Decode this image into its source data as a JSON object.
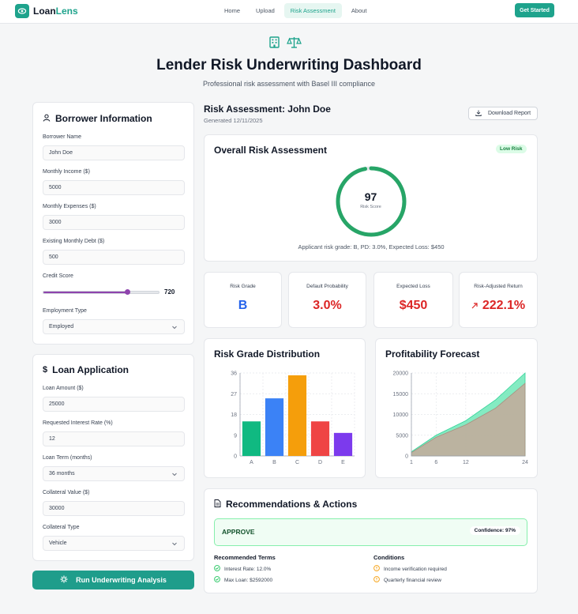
{
  "nav": {
    "brand_a": "Loan",
    "brand_b": "Lens",
    "links": [
      "Home",
      "Upload",
      "Risk Assessment",
      "About"
    ],
    "cta": "Get Started"
  },
  "hero": {
    "title": "Lender Risk Underwriting Dashboard",
    "subtitle": "Professional risk assessment with Basel III compliance"
  },
  "borrower": {
    "title": "Borrower Information",
    "name_label": "Borrower Name",
    "name_value": "John Doe",
    "income_label": "Monthly Income ($)",
    "income_value": "5000",
    "expenses_label": "Monthly Expenses ($)",
    "expenses_value": "3000",
    "debt_label": "Existing Monthly Debt ($)",
    "debt_value": "500",
    "credit_label": "Credit Score",
    "credit_value": "720",
    "credit_fraction": 0.72,
    "employment_label": "Employment Type",
    "employment_value": "Employed"
  },
  "loan": {
    "title": "Loan Application",
    "amount_label": "Loan Amount ($)",
    "amount_value": "25000",
    "rate_label": "Requested Interest Rate (%)",
    "rate_value": "12",
    "term_label": "Loan Term (months)",
    "term_value": "36 months",
    "collateral_label": "Collateral Value ($)",
    "collateral_value": "30000",
    "collateral_type_label": "Collateral Type",
    "collateral_type_value": "Vehicle"
  },
  "run_button": "Run Underwriting Analysis",
  "assessment": {
    "title": "Risk Assessment: John Doe",
    "date": "Generated 12/11/2025",
    "download": "Download Report",
    "overall_title": "Overall Risk Assessment",
    "badge": "Low Risk",
    "score": "97",
    "score_label": "Risk Score",
    "score_fraction": 0.97,
    "summary": "Applicant risk grade: B, PD: 3.0%, Expected Loss: $450"
  },
  "metrics": [
    {
      "label": "Risk Grade",
      "value": "B",
      "color": "#2563eb"
    },
    {
      "label": "Default Probability",
      "value": "3.0%",
      "color": "#dc2626"
    },
    {
      "label": "Expected Loss",
      "value": "$450",
      "color": "#dc2626"
    },
    {
      "label": "Risk-Adjusted Return",
      "value": "222.1%",
      "color": "#dc2626"
    }
  ],
  "chart_data": [
    {
      "type": "bar",
      "title": "Risk Grade Distribution",
      "categories": [
        "A",
        "B",
        "C",
        "D",
        "E"
      ],
      "values": [
        15,
        25,
        35,
        15,
        10
      ],
      "colors": [
        "#10b981",
        "#3b82f6",
        "#f59e0b",
        "#ef4444",
        "#7c3aed"
      ],
      "yticks": [
        "0",
        "9",
        "18",
        "27",
        "36"
      ],
      "ylim": [
        0,
        36
      ],
      "grid": true
    },
    {
      "type": "area",
      "title": "Profitability Forecast",
      "x": [
        1,
        6,
        12,
        18,
        24
      ],
      "xticks": [
        "1",
        "6",
        "12",
        "24"
      ],
      "yticks": [
        "0",
        "5000",
        "10000",
        "15000",
        "20000"
      ],
      "ylim": [
        0,
        20000
      ],
      "series": [
        {
          "values": [
            1000,
            5000,
            8500,
            13500,
            20000
          ],
          "color": "#6ee7b7"
        },
        {
          "values": [
            800,
            4500,
            7500,
            11500,
            17500
          ],
          "color": "#c4a99a"
        }
      ],
      "grid": true
    }
  ],
  "recommendations": {
    "title": "Recommendations & Actions",
    "status": "APPROVE",
    "confidence": "Confidence: 97%",
    "terms_title": "Recommended Terms",
    "terms": [
      "Interest Rate: 12.0%",
      "Max Loan: $2592000"
    ],
    "conditions_title": "Conditions",
    "conditions": [
      "Income verification required",
      "Quarterly financial review"
    ]
  }
}
